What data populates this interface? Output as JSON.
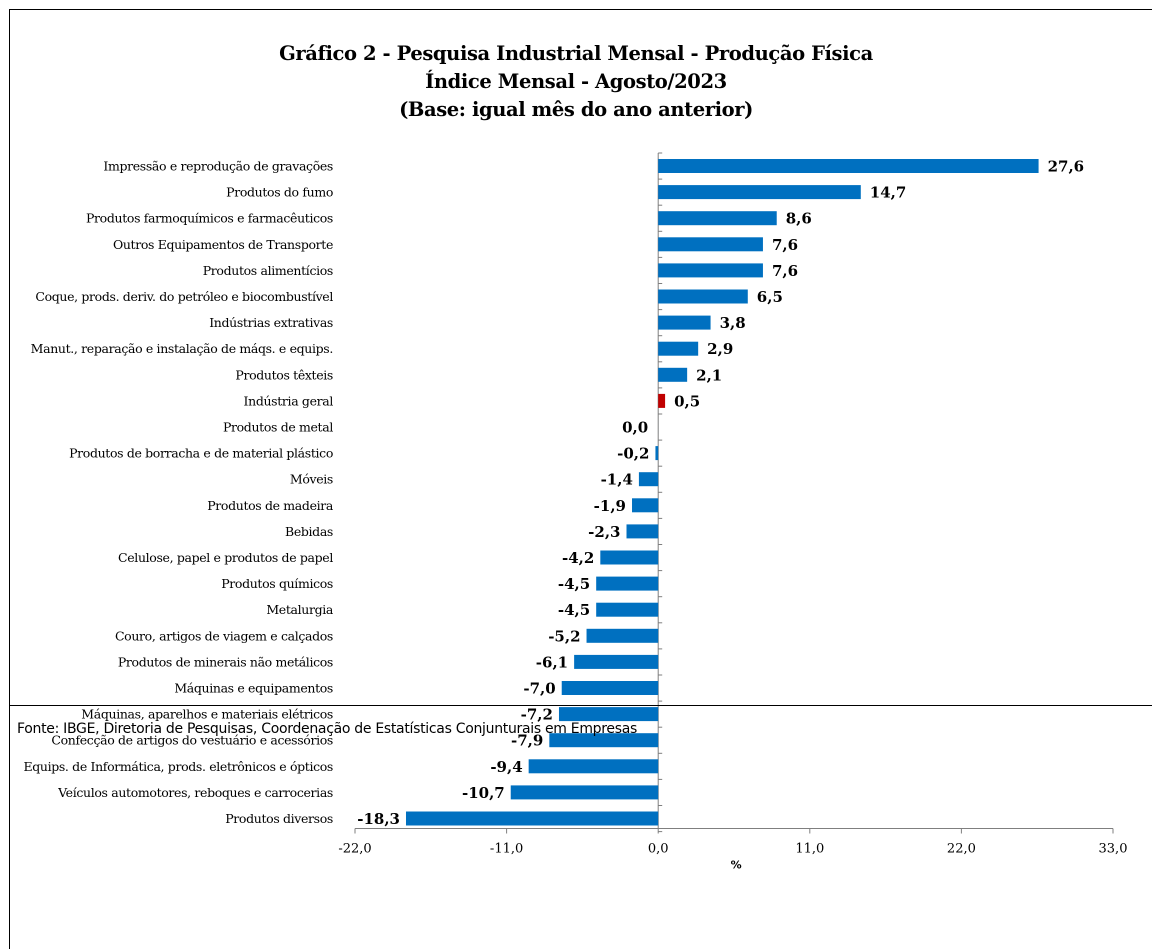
{
  "title_lines": [
    "Gráfico 2 - Pesquisa Industrial Mensal - Produção Física",
    "Índice Mensal - Agosto/2023",
    "(Base: igual mês do ano anterior)"
  ],
  "source": "Fonte: IBGE, Diretoria de Pesquisas, Coordenação de Estatísticas Conjunturais em Empresas",
  "colors": {
    "bar": "#0070c0",
    "highlight": "#c00000"
  },
  "chart_data": {
    "type": "bar",
    "orientation": "horizontal",
    "title": "Gráfico 2 - Pesquisa Industrial Mensal - Produção Física / Índice Mensal - Agosto/2023 / (Base: igual mês do ano anterior)",
    "xlabel": "%",
    "ylabel": "",
    "xlim": [
      -22.0,
      33.0
    ],
    "ticks": [
      "-22,0",
      "-11,0",
      "0,0",
      "11,0",
      "22,0",
      "33,0"
    ],
    "tick_values": [
      -22,
      -11,
      0,
      11,
      22,
      33
    ],
    "grid": false,
    "highlight": "Indústria geral",
    "categories": [
      "Impressão e reprodução de gravações",
      "Produtos do fumo",
      "Produtos farmoquímicos e farmacêuticos",
      "Outros Equipamentos de Transporte",
      "Produtos alimentícios",
      "Coque, prods. deriv. do petróleo e biocombustível",
      "Indústrias extrativas",
      "Manut., reparação e instalação de máqs. e equips.",
      "Produtos têxteis",
      "Indústria geral",
      "Produtos de metal",
      "Produtos de borracha e de material plástico",
      "Móveis",
      "Produtos de madeira",
      "Bebidas",
      "Celulose, papel e produtos de papel",
      "Produtos químicos",
      "Metalurgia",
      "Couro, artigos de viagem e calçados",
      "Produtos de minerais não metálicos",
      "Máquinas e equipamentos",
      "Máquinas, aparelhos e materiais elétricos",
      "Confecção de artigos do vestuário e acessórios",
      "Equips. de Informática, prods. eletrônicos e ópticos",
      "Veículos automotores, reboques e carrocerias",
      "Produtos diversos"
    ],
    "values": [
      27.6,
      14.7,
      8.6,
      7.6,
      7.6,
      6.5,
      3.8,
      2.9,
      2.1,
      0.5,
      0.0,
      -0.2,
      -1.4,
      -1.9,
      -2.3,
      -4.2,
      -4.5,
      -4.5,
      -5.2,
      -6.1,
      -7.0,
      -7.2,
      -7.9,
      -9.4,
      -10.7,
      -18.3
    ],
    "value_labels": [
      "27,6",
      "14,7",
      "8,6",
      "7,6",
      "7,6",
      "6,5",
      "3,8",
      "2,9",
      "2,1",
      "0,5",
      "0,0",
      "-0,2",
      "-1,4",
      "-1,9",
      "-2,3",
      "-4,2",
      "-4,5",
      "-4,5",
      "-5,2",
      "-6,1",
      "-7,0",
      "-7,2",
      "-7,9",
      "-9,4",
      "-10,7",
      "-18,3"
    ]
  }
}
